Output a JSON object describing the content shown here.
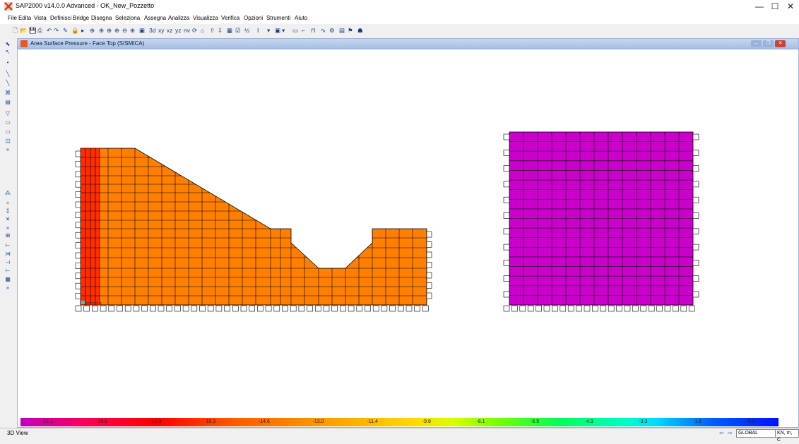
{
  "app": {
    "title": "SAP2000 v14.0.0 Advanced  - OK_New_Pozzetto",
    "controls": {
      "minimize": "—",
      "maximize": "☐",
      "close": "✕"
    }
  },
  "menu": [
    "File",
    "Edita",
    "Vista",
    "Definisci",
    "Bridge",
    "Disegna",
    "Seleziona",
    "Assegna",
    "Analizza",
    "Visualizza",
    "Verifica",
    "Opzioni",
    "Strumenti",
    "Aiuto"
  ],
  "toolbar": {
    "view_3d": "3d",
    "view_xy": "xy",
    "view_xz": "xz",
    "view_yz": "yz",
    "view_nv": "nv"
  },
  "window": {
    "title": "Area Surface Pressure - Face Top (SISMICA)"
  },
  "colors": {
    "left_fill": "#ff8000",
    "left_edge_fill": "#ff2000",
    "right_fill": "#cc00cc",
    "joint_marker": "#33cccc"
  },
  "colorbar": {
    "labels": [
      "-21.1",
      "-19.5",
      "-17.9",
      "-16.3",
      "-14.6",
      "-13.0",
      "-11.4",
      "-9.8",
      "-8.1",
      "-6.5",
      "-4.9",
      "-3.3",
      "-1.6",
      "0.0"
    ]
  },
  "status": {
    "view_name": "3D View",
    "coord_system": "GLOBAL",
    "units": "KN, m, C"
  }
}
